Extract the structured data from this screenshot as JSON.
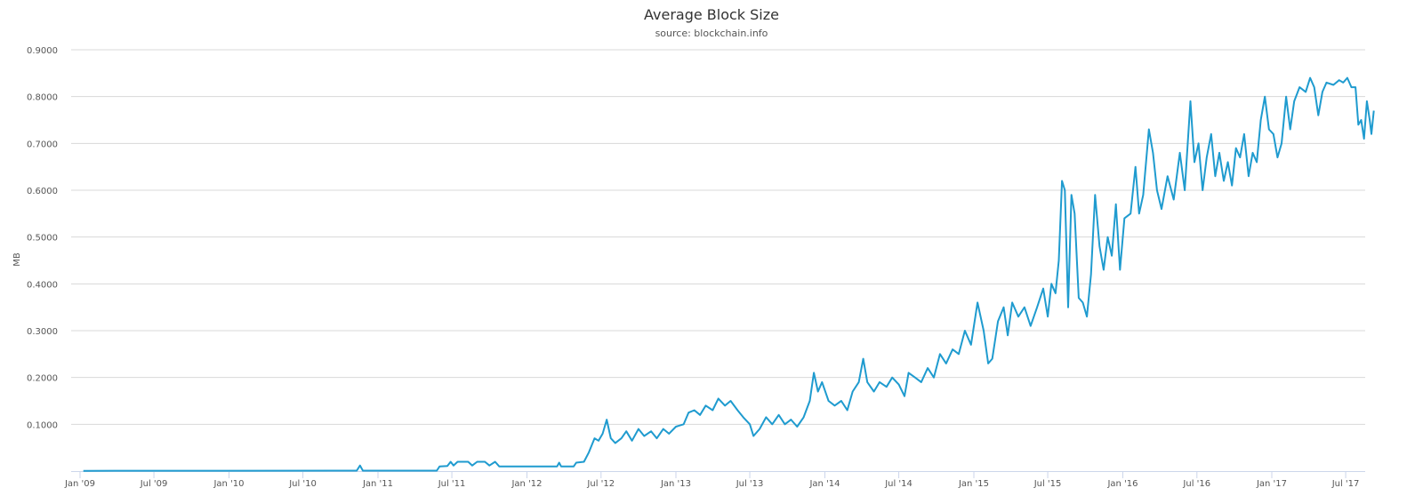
{
  "chart_data": {
    "type": "line",
    "title": "Average Block Size",
    "subtitle": "source: blockchain.info",
    "xlabel": "",
    "ylabel": "MB",
    "ylim": [
      0,
      0.9
    ],
    "xlim": [
      "2009-01-01",
      "2017-09-15"
    ],
    "grid": true,
    "line_color": "#1f9bcf",
    "y_ticks": [
      "0.1000",
      "0.2000",
      "0.3000",
      "0.4000",
      "0.5000",
      "0.6000",
      "0.7000",
      "0.8000",
      "0.9000"
    ],
    "x_ticks": [
      {
        "label": "Jan '09",
        "date": "2009-01-01"
      },
      {
        "label": "Jul '09",
        "date": "2009-07-01"
      },
      {
        "label": "Jan '10",
        "date": "2010-01-01"
      },
      {
        "label": "Jul '10",
        "date": "2010-07-01"
      },
      {
        "label": "Jan '11",
        "date": "2011-01-01"
      },
      {
        "label": "Jul '11",
        "date": "2011-07-01"
      },
      {
        "label": "Jan '12",
        "date": "2012-01-01"
      },
      {
        "label": "Jul '12",
        "date": "2012-07-01"
      },
      {
        "label": "Jan '13",
        "date": "2013-01-01"
      },
      {
        "label": "Jul '13",
        "date": "2013-07-01"
      },
      {
        "label": "Jan '14",
        "date": "2014-01-01"
      },
      {
        "label": "Jul '14",
        "date": "2014-07-01"
      },
      {
        "label": "Jan '15",
        "date": "2015-01-01"
      },
      {
        "label": "Jul '15",
        "date": "2015-07-01"
      },
      {
        "label": "Jan '16",
        "date": "2016-01-01"
      },
      {
        "label": "Jul '16",
        "date": "2016-07-01"
      },
      {
        "label": "Jan '17",
        "date": "2017-01-01"
      },
      {
        "label": "Jul '17",
        "date": "2017-07-01"
      }
    ],
    "series": [
      {
        "points": [
          [
            "2009-01-09",
            0.0005
          ],
          [
            "2010-11-10",
            0.001
          ],
          [
            "2010-11-18",
            0.012
          ],
          [
            "2010-11-25",
            0.001
          ],
          [
            "2011-05-25",
            0.001
          ],
          [
            "2011-06-01",
            0.01
          ],
          [
            "2011-06-20",
            0.011
          ],
          [
            "2011-06-28",
            0.02
          ],
          [
            "2011-07-05",
            0.012
          ],
          [
            "2011-07-15",
            0.02
          ],
          [
            "2011-08-10",
            0.02
          ],
          [
            "2011-08-20",
            0.012
          ],
          [
            "2011-09-01",
            0.02
          ],
          [
            "2011-09-20",
            0.02
          ],
          [
            "2011-10-01",
            0.012
          ],
          [
            "2011-10-15",
            0.02
          ],
          [
            "2011-10-25",
            0.01
          ],
          [
            "2012-03-15",
            0.01
          ],
          [
            "2012-03-20",
            0.018
          ],
          [
            "2012-03-25",
            0.01
          ],
          [
            "2012-04-25",
            0.01
          ],
          [
            "2012-05-01",
            0.018
          ],
          [
            "2012-05-20",
            0.02
          ],
          [
            "2012-06-01",
            0.04
          ],
          [
            "2012-06-15",
            0.07
          ],
          [
            "2012-06-25",
            0.065
          ],
          [
            "2012-07-05",
            0.08
          ],
          [
            "2012-07-15",
            0.11
          ],
          [
            "2012-07-25",
            0.07
          ],
          [
            "2012-08-05",
            0.06
          ],
          [
            "2012-08-20",
            0.07
          ],
          [
            "2012-09-01",
            0.085
          ],
          [
            "2012-09-15",
            0.065
          ],
          [
            "2012-10-01",
            0.09
          ],
          [
            "2012-10-15",
            0.075
          ],
          [
            "2012-11-01",
            0.085
          ],
          [
            "2012-11-15",
            0.07
          ],
          [
            "2012-12-01",
            0.09
          ],
          [
            "2012-12-15",
            0.08
          ],
          [
            "2013-01-01",
            0.095
          ],
          [
            "2013-01-20",
            0.1
          ],
          [
            "2013-02-01",
            0.125
          ],
          [
            "2013-02-15",
            0.13
          ],
          [
            "2013-03-01",
            0.12
          ],
          [
            "2013-03-15",
            0.14
          ],
          [
            "2013-04-01",
            0.13
          ],
          [
            "2013-04-15",
            0.155
          ],
          [
            "2013-05-01",
            0.14
          ],
          [
            "2013-05-15",
            0.15
          ],
          [
            "2013-06-01",
            0.13
          ],
          [
            "2013-06-15",
            0.115
          ],
          [
            "2013-07-01",
            0.1
          ],
          [
            "2013-07-10",
            0.075
          ],
          [
            "2013-07-25",
            0.09
          ],
          [
            "2013-08-10",
            0.115
          ],
          [
            "2013-08-25",
            0.1
          ],
          [
            "2013-09-10",
            0.12
          ],
          [
            "2013-09-25",
            0.1
          ],
          [
            "2013-10-10",
            0.11
          ],
          [
            "2013-10-25",
            0.095
          ],
          [
            "2013-11-10",
            0.115
          ],
          [
            "2013-11-25",
            0.15
          ],
          [
            "2013-12-05",
            0.21
          ],
          [
            "2013-12-15",
            0.17
          ],
          [
            "2013-12-25",
            0.19
          ],
          [
            "2014-01-10",
            0.15
          ],
          [
            "2014-01-25",
            0.14
          ],
          [
            "2014-02-10",
            0.15
          ],
          [
            "2014-02-25",
            0.13
          ],
          [
            "2014-03-10",
            0.17
          ],
          [
            "2014-03-25",
            0.19
          ],
          [
            "2014-04-05",
            0.24
          ],
          [
            "2014-04-15",
            0.19
          ],
          [
            "2014-05-01",
            0.17
          ],
          [
            "2014-05-15",
            0.19
          ],
          [
            "2014-06-01",
            0.18
          ],
          [
            "2014-06-15",
            0.2
          ],
          [
            "2014-07-01",
            0.185
          ],
          [
            "2014-07-15",
            0.16
          ],
          [
            "2014-07-25",
            0.21
          ],
          [
            "2014-08-10",
            0.2
          ],
          [
            "2014-08-25",
            0.19
          ],
          [
            "2014-09-10",
            0.22
          ],
          [
            "2014-09-25",
            0.2
          ],
          [
            "2014-10-10",
            0.25
          ],
          [
            "2014-10-25",
            0.23
          ],
          [
            "2014-11-10",
            0.26
          ],
          [
            "2014-11-25",
            0.25
          ],
          [
            "2014-12-10",
            0.3
          ],
          [
            "2014-12-25",
            0.27
          ],
          [
            "2015-01-10",
            0.36
          ],
          [
            "2015-01-25",
            0.3
          ],
          [
            "2015-02-05",
            0.23
          ],
          [
            "2015-02-15",
            0.24
          ],
          [
            "2015-03-01",
            0.32
          ],
          [
            "2015-03-15",
            0.35
          ],
          [
            "2015-03-25",
            0.29
          ],
          [
            "2015-04-05",
            0.36
          ],
          [
            "2015-04-20",
            0.33
          ],
          [
            "2015-05-05",
            0.35
          ],
          [
            "2015-05-20",
            0.31
          ],
          [
            "2015-06-05",
            0.35
          ],
          [
            "2015-06-20",
            0.39
          ],
          [
            "2015-07-01",
            0.33
          ],
          [
            "2015-07-10",
            0.4
          ],
          [
            "2015-07-20",
            0.38
          ],
          [
            "2015-07-28",
            0.45
          ],
          [
            "2015-08-05",
            0.62
          ],
          [
            "2015-08-12",
            0.6
          ],
          [
            "2015-08-20",
            0.35
          ],
          [
            "2015-08-28",
            0.59
          ],
          [
            "2015-09-05",
            0.55
          ],
          [
            "2015-09-15",
            0.37
          ],
          [
            "2015-09-25",
            0.36
          ],
          [
            "2015-10-05",
            0.33
          ],
          [
            "2015-10-15",
            0.42
          ],
          [
            "2015-10-25",
            0.59
          ],
          [
            "2015-11-05",
            0.48
          ],
          [
            "2015-11-15",
            0.43
          ],
          [
            "2015-11-25",
            0.5
          ],
          [
            "2015-12-05",
            0.46
          ],
          [
            "2015-12-15",
            0.57
          ],
          [
            "2015-12-25",
            0.43
          ],
          [
            "2016-01-05",
            0.54
          ],
          [
            "2016-01-20",
            0.55
          ],
          [
            "2016-02-01",
            0.65
          ],
          [
            "2016-02-10",
            0.55
          ],
          [
            "2016-02-20",
            0.59
          ],
          [
            "2016-03-05",
            0.73
          ],
          [
            "2016-03-15",
            0.68
          ],
          [
            "2016-03-25",
            0.6
          ],
          [
            "2016-04-05",
            0.56
          ],
          [
            "2016-04-20",
            0.63
          ],
          [
            "2016-05-05",
            0.58
          ],
          [
            "2016-05-20",
            0.68
          ],
          [
            "2016-06-01",
            0.6
          ],
          [
            "2016-06-15",
            0.79
          ],
          [
            "2016-06-25",
            0.66
          ],
          [
            "2016-07-05",
            0.7
          ],
          [
            "2016-07-15",
            0.6
          ],
          [
            "2016-07-25",
            0.67
          ],
          [
            "2016-08-05",
            0.72
          ],
          [
            "2016-08-15",
            0.63
          ],
          [
            "2016-08-25",
            0.68
          ],
          [
            "2016-09-05",
            0.62
          ],
          [
            "2016-09-15",
            0.66
          ],
          [
            "2016-09-25",
            0.61
          ],
          [
            "2016-10-05",
            0.69
          ],
          [
            "2016-10-15",
            0.67
          ],
          [
            "2016-10-25",
            0.72
          ],
          [
            "2016-11-05",
            0.63
          ],
          [
            "2016-11-15",
            0.68
          ],
          [
            "2016-11-25",
            0.66
          ],
          [
            "2016-12-05",
            0.75
          ],
          [
            "2016-12-15",
            0.8
          ],
          [
            "2016-12-25",
            0.73
          ],
          [
            "2017-01-05",
            0.72
          ],
          [
            "2017-01-15",
            0.67
          ],
          [
            "2017-01-25",
            0.7
          ],
          [
            "2017-02-05",
            0.8
          ],
          [
            "2017-02-15",
            0.73
          ],
          [
            "2017-02-25",
            0.79
          ],
          [
            "2017-03-10",
            0.82
          ],
          [
            "2017-03-25",
            0.81
          ],
          [
            "2017-04-05",
            0.84
          ],
          [
            "2017-04-15",
            0.82
          ],
          [
            "2017-04-25",
            0.76
          ],
          [
            "2017-05-05",
            0.81
          ],
          [
            "2017-05-15",
            0.83
          ],
          [
            "2017-06-01",
            0.825
          ],
          [
            "2017-06-15",
            0.835
          ],
          [
            "2017-06-25",
            0.83
          ],
          [
            "2017-07-05",
            0.84
          ],
          [
            "2017-07-15",
            0.82
          ],
          [
            "2017-07-25",
            0.82
          ],
          [
            "2017-08-01",
            0.74
          ],
          [
            "2017-08-08",
            0.75
          ],
          [
            "2017-08-15",
            0.71
          ],
          [
            "2017-08-22",
            0.79
          ],
          [
            "2017-08-29",
            0.75
          ],
          [
            "2017-09-02",
            0.72
          ],
          [
            "2017-09-08",
            0.77
          ]
        ]
      }
    ]
  }
}
